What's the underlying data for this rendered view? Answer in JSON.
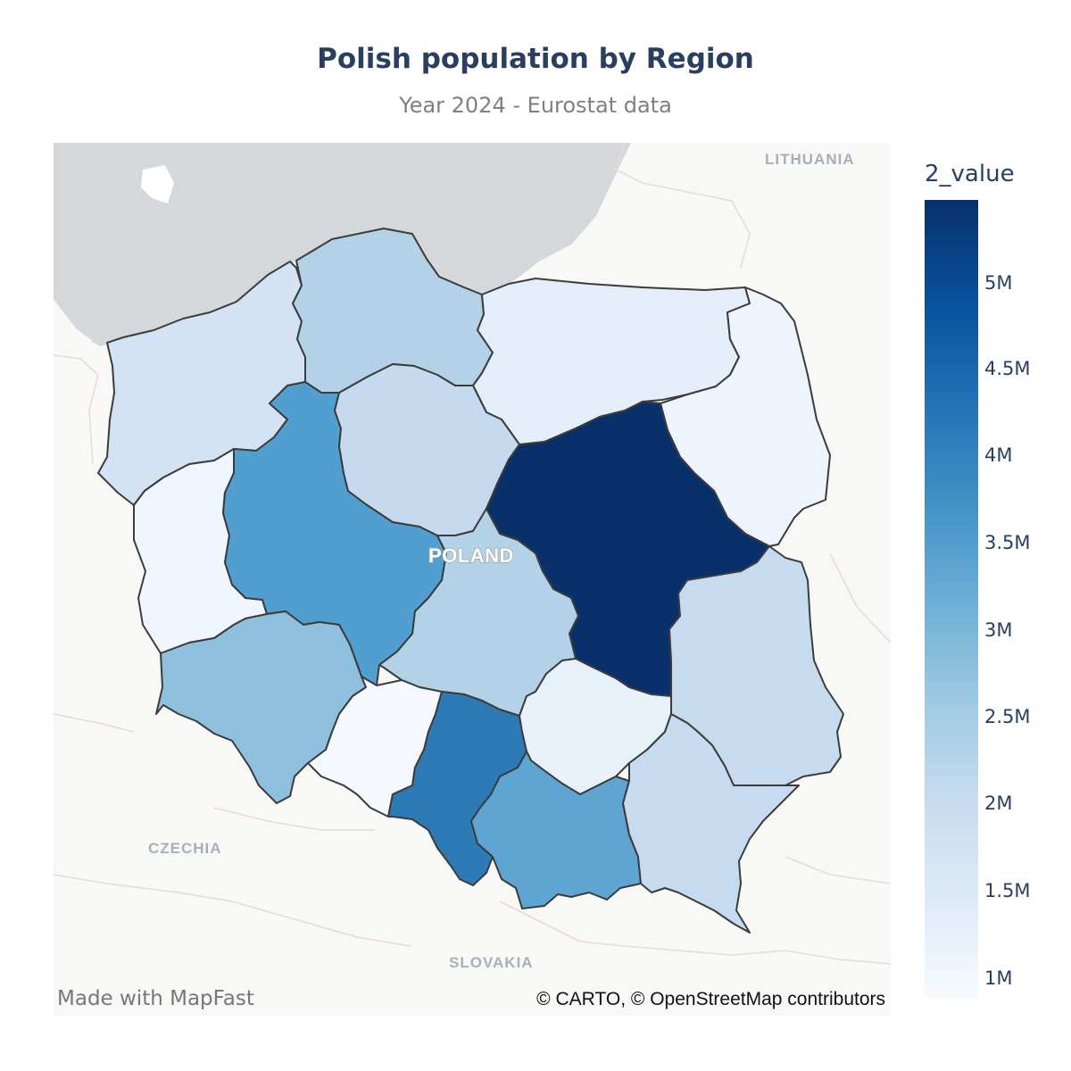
{
  "header": {
    "title": "Polish population by Region",
    "subtitle": "Year 2024 - Eurostat data"
  },
  "map": {
    "country_label": "POLAND",
    "neighbor_labels": [
      "LITHUANIA",
      "CZECHIA",
      "SLOVAKIA"
    ],
    "sea_color": "#d4d8db",
    "land_color": "#f8f8f7",
    "border_color": "#3c3c3c"
  },
  "colorbar": {
    "title": "2_value",
    "ticks": [
      "5M",
      "4.5M",
      "4M",
      "3.5M",
      "3M",
      "2.5M",
      "2M",
      "1.5M",
      "1M"
    ],
    "colorscale": "Blues"
  },
  "credits": {
    "left": "Made with MapFast",
    "right": "© CARTO, © OpenStreetMap contributors"
  }
}
